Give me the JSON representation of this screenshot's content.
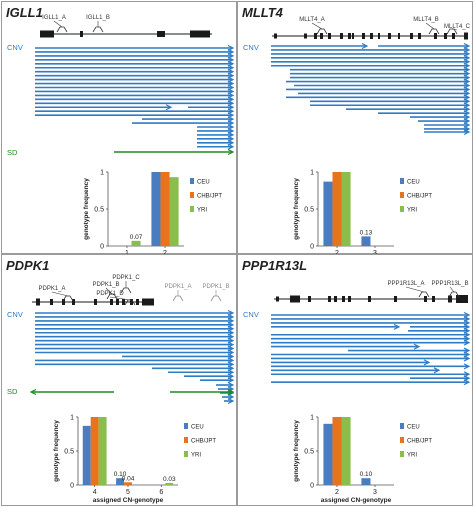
{
  "colors": {
    "cnv_blue": "#2f7bc4",
    "sd_green": "#1f8a1f",
    "ceu": "#4a7dbf",
    "chb_jpt": "#e8731c",
    "yri": "#8bbd4a",
    "gene_black": "#1a1a1a",
    "frame": "#9a9a9a"
  },
  "common": {
    "cnv_label": "CNV",
    "sd_label": "SD",
    "ylabel": "genotype frequency",
    "xlabel": "assigned CN-genotype",
    "legend": [
      "CEU",
      "CHB/JPT",
      "YRI"
    ]
  },
  "panels": [
    {
      "gene": "IGLL1",
      "probes": [
        "IGLL1_A",
        "IGLL1_B"
      ],
      "has_sd": true,
      "chart_data": {
        "type": "bar",
        "categories": [
          "1",
          "2"
        ],
        "series": [
          {
            "name": "CEU",
            "values": [
              0,
              1.0
            ]
          },
          {
            "name": "CHB/JPT",
            "values": [
              0,
              1.0
            ]
          },
          {
            "name": "YRI",
            "values": [
              0.07,
              0.93
            ]
          }
        ],
        "data_labels": [
          "0.07"
        ],
        "xlabel": "assigned CN-genotype",
        "ylabel": "genotype frequency",
        "yticks": [
          "0",
          "0.5",
          "1"
        ],
        "ylim": [
          0,
          1
        ]
      }
    },
    {
      "gene": "MLLT4",
      "probes": [
        "MLLT4_A",
        "MLLT4_B",
        "MLLT4_C"
      ],
      "has_sd": false,
      "chart_data": {
        "type": "bar",
        "categories": [
          "2",
          "3"
        ],
        "series": [
          {
            "name": "CEU",
            "values": [
              0.87,
              0.13
            ]
          },
          {
            "name": "CHB/JPT",
            "values": [
              1.0,
              0
            ]
          },
          {
            "name": "YRI",
            "values": [
              1.0,
              0
            ]
          }
        ],
        "data_labels": [
          "0.13"
        ],
        "xlabel": "assigned CN-genotype",
        "ylabel": "genotype frequency",
        "yticks": [
          "0",
          "0.5",
          "1"
        ],
        "ylim": [
          0,
          1
        ]
      }
    },
    {
      "gene": "PDPK1",
      "probes": [
        "PDPK1_A",
        "PDPK1_B",
        "PDPK1_C",
        "PDPK1_D",
        "PDPK1_A",
        "PDPK1_B"
      ],
      "has_sd": true,
      "chart_data": {
        "type": "bar",
        "categories": [
          "4",
          "5",
          "6"
        ],
        "series": [
          {
            "name": "CEU",
            "values": [
              0.87,
              0.1,
              0
            ]
          },
          {
            "name": "CHB/JPT",
            "values": [
              1.0,
              0.04,
              0
            ]
          },
          {
            "name": "YRI",
            "values": [
              1.0,
              0,
              0.03
            ]
          }
        ],
        "data_labels": [
          "0.10",
          "0.04",
          "0.03"
        ],
        "xlabel": "assigned CN-genotype",
        "ylabel": "genotype frequency",
        "yticks": [
          "0",
          "0.5",
          "1"
        ],
        "ylim": [
          0,
          1
        ]
      }
    },
    {
      "gene": "PPP1R13L",
      "probes": [
        "PPP1R13L_A",
        "PPP1R13L_B"
      ],
      "has_sd": false,
      "chart_data": {
        "type": "bar",
        "categories": [
          "2",
          "3"
        ],
        "series": [
          {
            "name": "CEU",
            "values": [
              0.9,
              0.1
            ]
          },
          {
            "name": "CHB/JPT",
            "values": [
              1.0,
              0
            ]
          },
          {
            "name": "YRI",
            "values": [
              1.0,
              0
            ]
          }
        ],
        "data_labels": [
          "0.10"
        ],
        "xlabel": "assigned CN-genotype",
        "ylabel": "genotype frequency",
        "yticks": [
          "0",
          "0.5",
          "1"
        ],
        "ylim": [
          0,
          1
        ]
      }
    }
  ]
}
